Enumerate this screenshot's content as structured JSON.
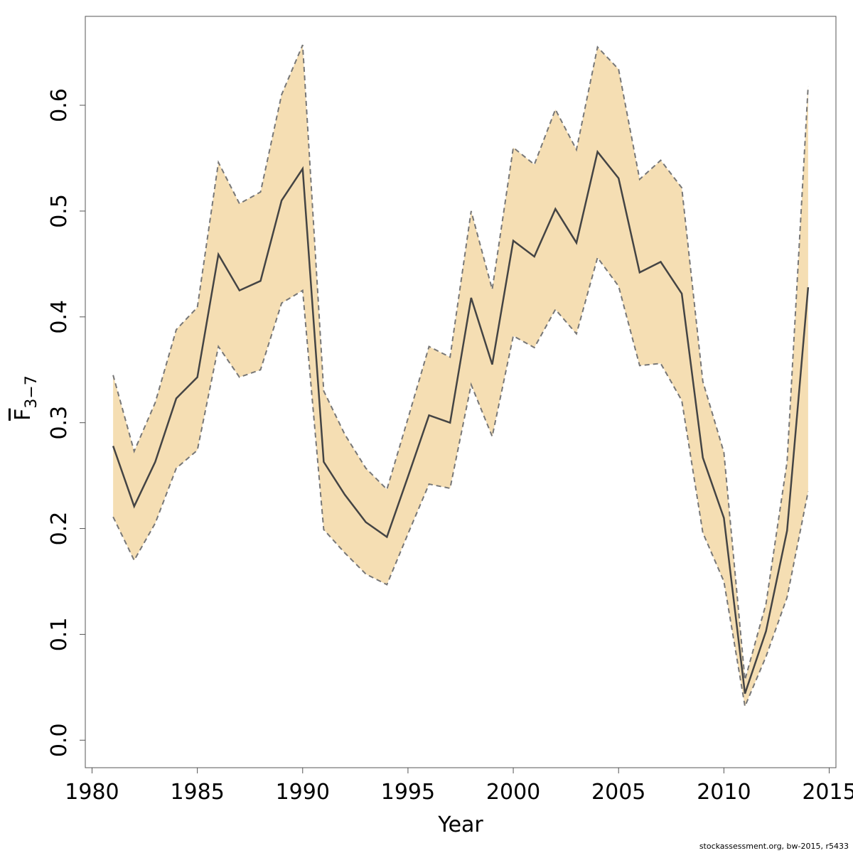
{
  "chart_data": {
    "type": "line_band",
    "xlabel": "Year",
    "ylabel": "F",
    "ylabel_sub": "3−7",
    "footnote": "stockassessment.org, bw-2015, r5433",
    "x": [
      1981,
      1982,
      1983,
      1984,
      1985,
      1986,
      1987,
      1988,
      1989,
      1990,
      1991,
      1992,
      1993,
      1994,
      1995,
      1996,
      1997,
      1998,
      1999,
      2000,
      2001,
      2002,
      2003,
      2004,
      2005,
      2006,
      2007,
      2008,
      2009,
      2010,
      2011,
      2012,
      2013,
      2014
    ],
    "series": [
      {
        "color": "#444444",
        "values": [
          0.278,
          0.221,
          0.263,
          0.323,
          0.343,
          0.459,
          0.425,
          0.434,
          0.51,
          0.54,
          0.263,
          0.232,
          0.206,
          0.192,
          0.249,
          0.307,
          0.3,
          0.418,
          0.355,
          0.472,
          0.457,
          0.502,
          0.47,
          0.556,
          0.531,
          0.442,
          0.452,
          0.422,
          0.267,
          0.21,
          0.044,
          0.103,
          0.198,
          0.428
        ]
      }
    ],
    "band": {
      "color": "#f5deb3",
      "line_color": "#777777",
      "upper": [
        0.345,
        0.273,
        0.319,
        0.388,
        0.409,
        0.546,
        0.507,
        0.518,
        0.61,
        0.657,
        0.33,
        0.289,
        0.257,
        0.237,
        0.304,
        0.372,
        0.362,
        0.5,
        0.426,
        0.56,
        0.544,
        0.596,
        0.558,
        0.655,
        0.634,
        0.53,
        0.548,
        0.522,
        0.339,
        0.272,
        0.057,
        0.129,
        0.263,
        0.618
      ],
      "lower": [
        0.211,
        0.17,
        0.205,
        0.257,
        0.274,
        0.372,
        0.343,
        0.35,
        0.413,
        0.425,
        0.199,
        0.177,
        0.157,
        0.147,
        0.195,
        0.242,
        0.238,
        0.336,
        0.287,
        0.382,
        0.371,
        0.407,
        0.384,
        0.456,
        0.429,
        0.354,
        0.356,
        0.321,
        0.196,
        0.15,
        0.032,
        0.079,
        0.135,
        0.235
      ]
    },
    "xlim": [
      1979.68,
      2015.32
    ],
    "ylim": [
      -0.026,
      0.684
    ],
    "xticks": [
      1980,
      1985,
      1990,
      1995,
      2000,
      2005,
      2010,
      2015
    ],
    "yticks": [
      {
        "value": 0,
        "label": "0.0"
      },
      0.1,
      0.2,
      0.3,
      0.4,
      0.5,
      0.6
    ]
  }
}
